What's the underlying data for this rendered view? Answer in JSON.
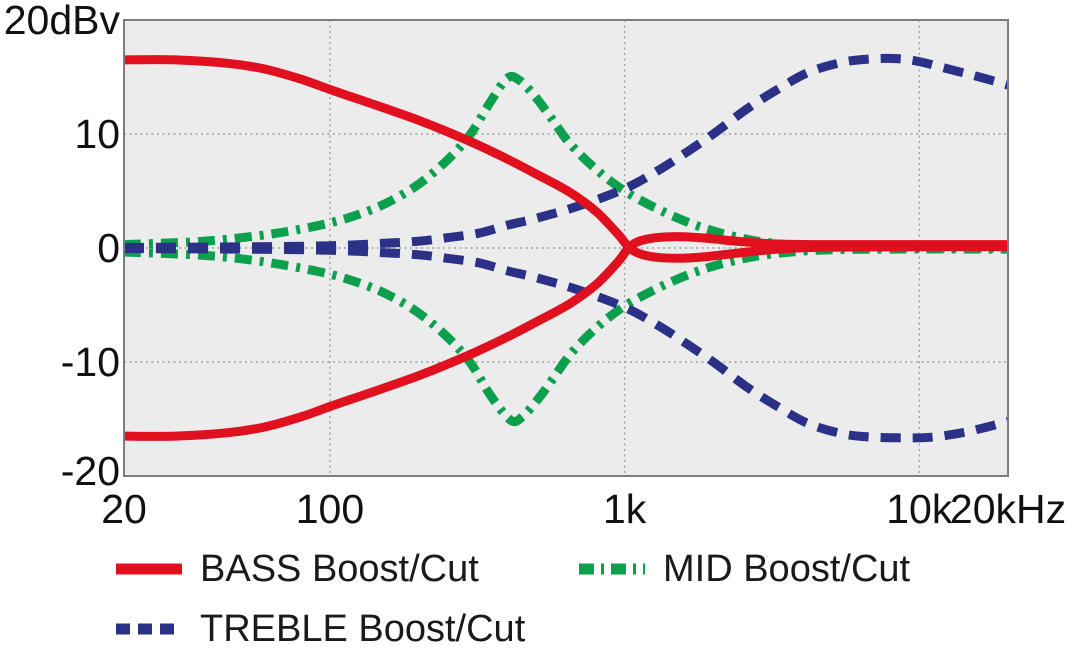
{
  "chart_data": {
    "type": "line",
    "title": "",
    "x_axis": {
      "scale": "log",
      "unit": "Hz",
      "min": 20,
      "max": 20000,
      "ticks": [
        {
          "label": "20",
          "value": 20,
          "grid": false
        },
        {
          "label": "100",
          "value": 100,
          "grid": true
        },
        {
          "label": "1k",
          "value": 1000,
          "grid": true
        },
        {
          "label": "10k",
          "value": 10000,
          "grid": true
        },
        {
          "label": "20kHz",
          "value": 20000,
          "grid": false
        }
      ]
    },
    "y_axis": {
      "unit": "dBv",
      "min": -20,
      "max": 20,
      "ticks": [
        {
          "label": "20dBv",
          "value": 20,
          "grid": false
        },
        {
          "label": "10",
          "value": 10,
          "grid": true
        },
        {
          "label": "0",
          "value": 0,
          "grid": true
        },
        {
          "label": "-10",
          "value": -10,
          "grid": true
        },
        {
          "label": "-20",
          "value": -20,
          "grid": false
        }
      ]
    },
    "styles": {
      "bass": {
        "color": "#e0101e",
        "dash": null,
        "legend_dash": null
      },
      "mid": {
        "color": "#0ca04e",
        "dash": "17 8 4 8",
        "legend_dash": "15 7 3 7"
      },
      "treble": {
        "color": "#2a3186",
        "dash": "20 12",
        "legend_dash": "14 8"
      }
    },
    "legend": [
      {
        "group": "bass",
        "label": "BASS Boost/Cut"
      },
      {
        "group": "mid",
        "label": "MID Boost/Cut"
      },
      {
        "group": "treble",
        "label": "TREBLE Boost/Cut"
      }
    ],
    "series": [
      {
        "key": "bass-boost",
        "group": "bass",
        "points": [
          [
            20,
            16.5
          ],
          [
            30,
            16.5
          ],
          [
            45,
            16.2
          ],
          [
            60,
            15.7
          ],
          [
            80,
            14.8
          ],
          [
            100,
            13.9
          ],
          [
            130,
            12.9
          ],
          [
            160,
            12.1
          ],
          [
            200,
            11.2
          ],
          [
            250,
            10.2
          ],
          [
            320,
            9.0
          ],
          [
            400,
            7.8
          ],
          [
            500,
            6.5
          ],
          [
            650,
            4.9
          ],
          [
            800,
            3.2
          ],
          [
            950,
            1.2
          ],
          [
            1050,
            -0.1
          ],
          [
            1200,
            -0.7
          ],
          [
            1500,
            -0.9
          ],
          [
            1900,
            -0.75
          ],
          [
            2500,
            -0.4
          ],
          [
            3300,
            -0.1
          ],
          [
            4500,
            0.05
          ],
          [
            7000,
            0.1
          ],
          [
            12000,
            0.12
          ],
          [
            20000,
            0.12
          ]
        ]
      },
      {
        "key": "bass-cut",
        "group": "bass",
        "points": [
          [
            20,
            -16.5
          ],
          [
            30,
            -16.5
          ],
          [
            45,
            -16.2
          ],
          [
            60,
            -15.7
          ],
          [
            80,
            -14.8
          ],
          [
            100,
            -13.9
          ],
          [
            130,
            -12.9
          ],
          [
            160,
            -12.1
          ],
          [
            200,
            -11.2
          ],
          [
            250,
            -10.2
          ],
          [
            320,
            -9.0
          ],
          [
            400,
            -7.8
          ],
          [
            500,
            -6.5
          ],
          [
            650,
            -4.9
          ],
          [
            800,
            -3.2
          ],
          [
            950,
            -1.2
          ],
          [
            1050,
            0.2
          ],
          [
            1200,
            0.8
          ],
          [
            1500,
            1.0
          ],
          [
            1900,
            0.85
          ],
          [
            2500,
            0.55
          ],
          [
            3300,
            0.35
          ],
          [
            4500,
            0.3
          ],
          [
            7000,
            0.3
          ],
          [
            12000,
            0.3
          ],
          [
            20000,
            0.3
          ]
        ]
      },
      {
        "key": "mid-boost",
        "group": "mid",
        "points": [
          [
            20,
            0.3
          ],
          [
            35,
            0.55
          ],
          [
            50,
            0.9
          ],
          [
            70,
            1.4
          ],
          [
            100,
            2.2
          ],
          [
            130,
            3.1
          ],
          [
            160,
            4.1
          ],
          [
            200,
            5.6
          ],
          [
            250,
            7.7
          ],
          [
            300,
            10.0
          ],
          [
            350,
            12.8
          ],
          [
            400,
            14.9
          ],
          [
            440,
            14.7
          ],
          [
            500,
            13.2
          ],
          [
            560,
            11.5
          ],
          [
            650,
            9.2
          ],
          [
            800,
            6.9
          ],
          [
            1000,
            5.0
          ],
          [
            1300,
            3.4
          ],
          [
            1700,
            2.1
          ],
          [
            2200,
            1.2
          ],
          [
            3000,
            0.5
          ],
          [
            4500,
            0.15
          ],
          [
            8000,
            0.05
          ],
          [
            20000,
            0.0
          ]
        ]
      },
      {
        "key": "mid-cut",
        "group": "mid",
        "points": [
          [
            20,
            -0.35
          ],
          [
            35,
            -0.6
          ],
          [
            50,
            -0.95
          ],
          [
            70,
            -1.5
          ],
          [
            100,
            -2.3
          ],
          [
            130,
            -3.2
          ],
          [
            160,
            -4.2
          ],
          [
            200,
            -5.7
          ],
          [
            250,
            -7.8
          ],
          [
            300,
            -10.1
          ],
          [
            350,
            -12.9
          ],
          [
            410,
            -15.1
          ],
          [
            450,
            -14.8
          ],
          [
            510,
            -13.2
          ],
          [
            570,
            -11.5
          ],
          [
            660,
            -9.2
          ],
          [
            810,
            -6.9
          ],
          [
            1000,
            -5.1
          ],
          [
            1300,
            -3.5
          ],
          [
            1700,
            -2.2
          ],
          [
            2200,
            -1.3
          ],
          [
            3000,
            -0.6
          ],
          [
            4500,
            -0.2
          ],
          [
            8000,
            -0.1
          ],
          [
            20000,
            -0.1
          ]
        ]
      },
      {
        "key": "treble-boost",
        "group": "treble",
        "points": [
          [
            20,
            0.05
          ],
          [
            50,
            0.1
          ],
          [
            100,
            0.2
          ],
          [
            150,
            0.4
          ],
          [
            200,
            0.6
          ],
          [
            250,
            0.9
          ],
          [
            320,
            1.3
          ],
          [
            400,
            2.0
          ],
          [
            500,
            2.6
          ],
          [
            700,
            3.7
          ],
          [
            1000,
            5.2
          ],
          [
            1300,
            6.8
          ],
          [
            1600,
            8.3
          ],
          [
            2000,
            10.0
          ],
          [
            2600,
            12.2
          ],
          [
            3300,
            13.9
          ],
          [
            4200,
            15.4
          ],
          [
            5500,
            16.3
          ],
          [
            7000,
            16.6
          ],
          [
            8500,
            16.6
          ],
          [
            10000,
            16.35
          ],
          [
            13000,
            15.6
          ],
          [
            16000,
            15.0
          ],
          [
            20000,
            14.3
          ]
        ]
      },
      {
        "key": "treble-cut",
        "group": "treble",
        "points": [
          [
            20,
            -0.05
          ],
          [
            50,
            -0.1
          ],
          [
            100,
            -0.2
          ],
          [
            150,
            -0.4
          ],
          [
            200,
            -0.6
          ],
          [
            250,
            -0.9
          ],
          [
            320,
            -1.3
          ],
          [
            400,
            -2.0
          ],
          [
            500,
            -2.6
          ],
          [
            700,
            -3.7
          ],
          [
            1000,
            -5.2
          ],
          [
            1300,
            -6.8
          ],
          [
            1600,
            -8.3
          ],
          [
            2000,
            -10.0
          ],
          [
            2600,
            -12.2
          ],
          [
            3300,
            -13.9
          ],
          [
            4200,
            -15.4
          ],
          [
            5500,
            -16.3
          ],
          [
            7000,
            -16.6
          ],
          [
            9000,
            -16.65
          ],
          [
            11000,
            -16.6
          ],
          [
            14000,
            -16.2
          ],
          [
            17000,
            -15.7
          ],
          [
            20000,
            -15.2
          ]
        ]
      }
    ],
    "layout_hints": {
      "grid": "dotted",
      "legend_position": "below",
      "plot_background": "#ececec"
    }
  },
  "colors": {
    "page_bg": "#ffffff",
    "plot_bg": "#ececec",
    "plot_border": "#7d7d7d",
    "grid": "#9f9f9f",
    "text": "#111111"
  }
}
